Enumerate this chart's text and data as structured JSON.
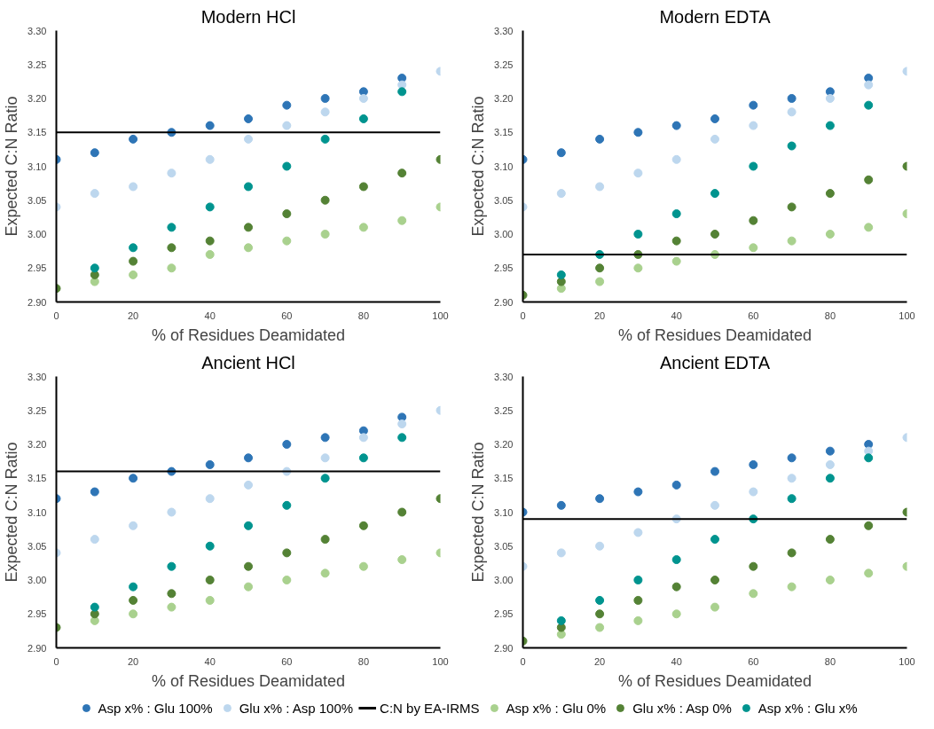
{
  "chart_data": [
    {
      "type": "scatter",
      "title": "Modern HCl",
      "xlabel": "% of Residues Deamidated",
      "ylabel": "Expected C:N Ratio",
      "x": [
        0,
        10,
        20,
        30,
        40,
        50,
        60,
        70,
        80,
        90,
        100
      ],
      "xlim": [
        0,
        100
      ],
      "ylim": [
        2.9,
        3.3
      ],
      "xticks": [
        0,
        20,
        40,
        60,
        80,
        100
      ],
      "yticks": [
        {
          "value": 2.9,
          "label": "2.90"
        },
        2.95,
        {
          "value": 3.0,
          "label": "3.00"
        },
        3.05,
        {
          "value": 3.1,
          "label": "3.10"
        },
        3.15,
        {
          "value": 3.2,
          "label": "3.20"
        },
        3.25,
        {
          "value": 3.3,
          "label": "3.30"
        }
      ],
      "grid": false,
      "marker": "circle",
      "legend": "bottom",
      "ref_lines": [
        {
          "axis": "y",
          "value": 3.15,
          "label": "C:N by EA-IRMS",
          "color": "#000000"
        }
      ],
      "series": [
        {
          "name": "Asp x% : Glu 100%",
          "color": "#2e75b6",
          "values": [
            3.11,
            3.12,
            3.14,
            3.15,
            3.16,
            3.17,
            3.19,
            3.2,
            3.21,
            3.23,
            null
          ]
        },
        {
          "name": "Glu x% : Asp 100%",
          "color": "#bdd7ee",
          "values": [
            3.04,
            3.06,
            3.07,
            3.09,
            3.11,
            3.14,
            3.16,
            3.18,
            3.2,
            3.22,
            3.24
          ]
        },
        {
          "name": "Asp x% : Glu 0%",
          "color": "#a9d18e",
          "values": [
            null,
            2.93,
            2.94,
            2.95,
            2.97,
            2.98,
            2.99,
            3.0,
            3.01,
            3.02,
            3.04
          ]
        },
        {
          "name": "Glu x% : Asp 0%",
          "color": "#548235",
          "values": [
            2.92,
            2.94,
            2.96,
            2.98,
            2.99,
            3.01,
            3.03,
            3.05,
            3.07,
            3.09,
            3.11
          ]
        },
        {
          "name": "Asp x% : Glu x%",
          "color": "#00948f",
          "values": [
            null,
            2.95,
            2.98,
            3.01,
            3.04,
            3.07,
            3.1,
            3.14,
            3.17,
            3.21,
            null
          ]
        }
      ]
    },
    {
      "type": "scatter",
      "title": "Modern EDTA",
      "xlabel": "% of Residues Deamidated",
      "ylabel": "Expected C:N Ratio",
      "x": [
        0,
        10,
        20,
        30,
        40,
        50,
        60,
        70,
        80,
        90,
        100
      ],
      "xlim": [
        0,
        100
      ],
      "ylim": [
        2.9,
        3.3
      ],
      "xticks": [
        0,
        20,
        40,
        60,
        80,
        100
      ],
      "yticks": [
        {
          "value": 2.9,
          "label": "2.90"
        },
        2.95,
        {
          "value": 3.0,
          "label": "3.00"
        },
        3.05,
        {
          "value": 3.1,
          "label": "3.10"
        },
        3.15,
        {
          "value": 3.2,
          "label": "3.20"
        },
        3.25,
        {
          "value": 3.3,
          "label": "3.30"
        }
      ],
      "grid": false,
      "marker": "circle",
      "ref_lines": [
        {
          "axis": "y",
          "value": 2.97,
          "color": "#000000"
        }
      ],
      "series": [
        {
          "color": "#2e75b6",
          "values": [
            3.11,
            3.12,
            3.14,
            3.15,
            3.16,
            3.17,
            3.19,
            3.2,
            3.21,
            3.23,
            null
          ]
        },
        {
          "color": "#bdd7ee",
          "values": [
            3.04,
            3.06,
            3.07,
            3.09,
            3.11,
            3.14,
            3.16,
            3.18,
            3.2,
            3.22,
            3.24
          ]
        },
        {
          "color": "#a9d18e",
          "values": [
            null,
            2.92,
            2.93,
            2.95,
            2.96,
            2.97,
            2.98,
            2.99,
            3.0,
            3.01,
            3.03
          ]
        },
        {
          "color": "#548235",
          "values": [
            2.91,
            2.93,
            2.95,
            2.97,
            2.99,
            3.0,
            3.02,
            3.04,
            3.06,
            3.08,
            3.1
          ]
        },
        {
          "color": "#00948f",
          "values": [
            null,
            2.94,
            2.97,
            3.0,
            3.03,
            3.06,
            3.1,
            3.13,
            3.16,
            3.19,
            null
          ]
        }
      ]
    },
    {
      "type": "scatter",
      "title": "Ancient HCl",
      "xlabel": "% of Residues Deamidated",
      "ylabel": "Expected C:N Ratio",
      "x": [
        0,
        10,
        20,
        30,
        40,
        50,
        60,
        70,
        80,
        90,
        100
      ],
      "xlim": [
        0,
        100
      ],
      "ylim": [
        2.9,
        3.3
      ],
      "xticks": [
        0,
        20,
        40,
        60,
        80,
        100
      ],
      "yticks": [
        {
          "value": 2.9,
          "label": "2.90"
        },
        2.95,
        {
          "value": 3.0,
          "label": "3.00"
        },
        3.05,
        {
          "value": 3.1,
          "label": "3.10"
        },
        3.15,
        {
          "value": 3.2,
          "label": "3.20"
        },
        3.25,
        {
          "value": 3.3,
          "label": "3.30"
        }
      ],
      "grid": false,
      "marker": "circle",
      "ref_lines": [
        {
          "axis": "y",
          "value": 3.16,
          "color": "#000000"
        }
      ],
      "series": [
        {
          "color": "#2e75b6",
          "values": [
            3.12,
            3.13,
            3.15,
            3.16,
            3.17,
            3.18,
            3.2,
            3.21,
            3.22,
            3.24,
            null
          ]
        },
        {
          "color": "#bdd7ee",
          "values": [
            3.04,
            3.06,
            3.08,
            3.1,
            3.12,
            3.14,
            3.16,
            3.18,
            3.21,
            3.23,
            3.25
          ]
        },
        {
          "color": "#a9d18e",
          "values": [
            null,
            2.94,
            2.95,
            2.96,
            2.97,
            2.99,
            3.0,
            3.01,
            3.02,
            3.03,
            3.04
          ]
        },
        {
          "color": "#548235",
          "values": [
            2.93,
            2.95,
            2.97,
            2.98,
            3.0,
            3.02,
            3.04,
            3.06,
            3.08,
            3.1,
            3.12
          ]
        },
        {
          "color": "#00948f",
          "values": [
            null,
            2.96,
            2.99,
            3.02,
            3.05,
            3.08,
            3.11,
            3.15,
            3.18,
            3.21,
            null
          ]
        }
      ]
    },
    {
      "type": "scatter",
      "title": "Ancient EDTA",
      "xlabel": "% of Residues Deamidated",
      "ylabel": "Expected C:N Ratio",
      "x": [
        0,
        10,
        20,
        30,
        40,
        50,
        60,
        70,
        80,
        90,
        100
      ],
      "xlim": [
        0,
        100
      ],
      "ylim": [
        2.9,
        3.3
      ],
      "xticks": [
        0,
        20,
        40,
        60,
        80,
        100
      ],
      "yticks": [
        {
          "value": 2.9,
          "label": "2.90"
        },
        2.95,
        {
          "value": 3.0,
          "label": "3.00"
        },
        3.05,
        {
          "value": 3.1,
          "label": "3.10"
        },
        3.15,
        {
          "value": 3.2,
          "label": "3.20"
        },
        3.25,
        {
          "value": 3.3,
          "label": "3.30"
        }
      ],
      "grid": false,
      "marker": "circle",
      "ref_lines": [
        {
          "axis": "y",
          "value": 3.09,
          "color": "#000000"
        }
      ],
      "series": [
        {
          "color": "#2e75b6",
          "values": [
            3.1,
            3.11,
            3.12,
            3.13,
            3.14,
            3.16,
            3.17,
            3.18,
            3.19,
            3.2,
            null
          ]
        },
        {
          "color": "#bdd7ee",
          "values": [
            3.02,
            3.04,
            3.05,
            3.07,
            3.09,
            3.11,
            3.13,
            3.15,
            3.17,
            3.19,
            3.21
          ]
        },
        {
          "color": "#a9d18e",
          "values": [
            null,
            2.92,
            2.93,
            2.94,
            2.95,
            2.96,
            2.98,
            2.99,
            3.0,
            3.01,
            3.02
          ]
        },
        {
          "color": "#548235",
          "values": [
            2.91,
            2.93,
            2.95,
            2.97,
            2.99,
            3.0,
            3.02,
            3.04,
            3.06,
            3.08,
            3.1
          ]
        },
        {
          "color": "#00948f",
          "values": [
            null,
            2.94,
            2.97,
            3.0,
            3.03,
            3.06,
            3.09,
            3.12,
            3.15,
            3.18,
            null
          ]
        }
      ]
    }
  ]
}
